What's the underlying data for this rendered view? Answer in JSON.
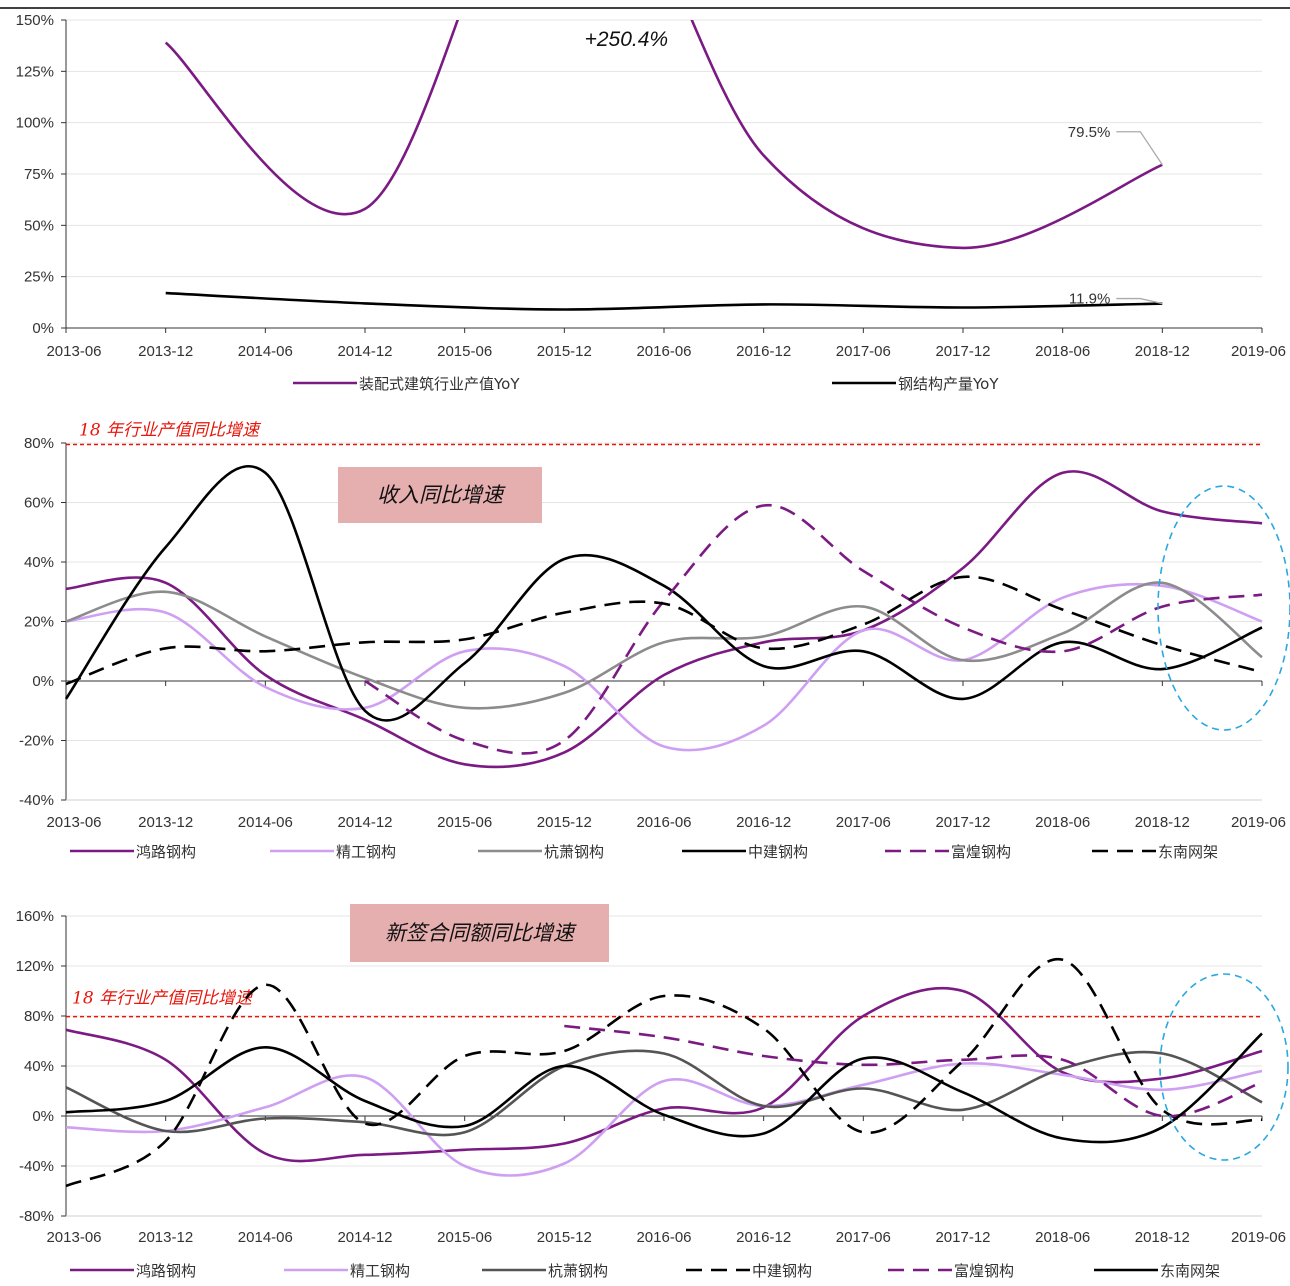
{
  "chart_data": [
    {
      "type": "line",
      "x_ticks": [
        "2013-06",
        "2013-12",
        "2014-06",
        "2014-12",
        "2015-06",
        "2015-12",
        "2016-06",
        "2016-12",
        "2017-06",
        "2017-12",
        "2018-06",
        "2018-12",
        "2019-06"
      ],
      "ylim": [
        0,
        150
      ],
      "y_ticks": [
        "0%",
        "25%",
        "50%",
        "75%",
        "100%",
        "125%",
        "150%"
      ],
      "series": [
        {
          "name": "装配式建筑行业产值YoY",
          "color": "#7b1a83",
          "dash": "solid",
          "points": [
            [
              "2013-12",
              139
            ],
            [
              "2014-12",
              58
            ],
            [
              "2015-12",
              250.4
            ],
            [
              "2016-12",
              84
            ],
            [
              "2017-12",
              39
            ],
            [
              "2018-12",
              79.5
            ]
          ]
        },
        {
          "name": "钢结构产量YoY",
          "color": "#000000",
          "dash": "solid",
          "points": [
            [
              "2013-12",
              17
            ],
            [
              "2014-12",
              12
            ],
            [
              "2015-12",
              9
            ],
            [
              "2016-12",
              11.5
            ],
            [
              "2017-12",
              10
            ],
            [
              "2018-12",
              11.9
            ]
          ]
        }
      ],
      "annotations": [
        {
          "text": "+250.4%",
          "x": "2015-12",
          "y": 250.4
        },
        {
          "text": "79.5%",
          "x": "2018-12",
          "y": 79.5
        },
        {
          "text": "11.9%",
          "x": "2018-12",
          "y": 11.9
        }
      ]
    },
    {
      "type": "line",
      "title": "收入同比增速",
      "x_ticks": [
        "2013-06",
        "2013-12",
        "2014-06",
        "2014-12",
        "2015-06",
        "2015-12",
        "2016-06",
        "2016-12",
        "2017-06",
        "2017-12",
        "2018-06",
        "2018-12",
        "2019-06"
      ],
      "ylim": [
        -40,
        80
      ],
      "y_ticks": [
        "-40%",
        "-20%",
        "0%",
        "20%",
        "40%",
        "60%",
        "80%"
      ],
      "reference_line": {
        "label": "18 年行业产值同比增速",
        "y": 79.5
      },
      "series": [
        {
          "name": "鸿路钢构",
          "color": "#7b1a83",
          "dash": "solid",
          "values": [
            31,
            33,
            2,
            -13,
            -28,
            -24,
            2,
            13,
            17,
            38,
            70,
            57,
            53
          ]
        },
        {
          "name": "精工钢构",
          "color": "#cfa0f2",
          "dash": "solid",
          "values": [
            20,
            23,
            -2,
            -9,
            10,
            5,
            -22,
            -15,
            17,
            7,
            28,
            32,
            20
          ]
        },
        {
          "name": "杭萧钢构",
          "color": "#8c8c8c",
          "dash": "solid",
          "values": [
            20,
            30,
            15,
            1,
            -9,
            -4,
            13,
            15,
            25,
            7,
            16,
            33,
            8
          ]
        },
        {
          "name": "中建钢构",
          "color": "#000000",
          "dash": "solid",
          "values": [
            -6,
            45,
            70,
            -10,
            6,
            41,
            32,
            5,
            10,
            -6,
            13,
            4,
            18
          ]
        },
        {
          "name": "富煌钢构",
          "color": "#7b1a83",
          "dash": "dashed",
          "values": [
            null,
            null,
            null,
            0,
            -20,
            -20,
            27,
            59,
            37,
            18,
            10,
            25,
            29
          ]
        },
        {
          "name": "东南网架",
          "color": "#000000",
          "dash": "dashed",
          "values": [
            -1,
            11,
            10,
            13,
            14,
            23,
            26,
            11,
            19,
            35,
            24,
            12,
            3
          ]
        }
      ]
    },
    {
      "type": "line",
      "title": "新签合同额同比增速",
      "x_ticks": [
        "2013-06",
        "2013-12",
        "2014-06",
        "2014-12",
        "2015-06",
        "2015-12",
        "2016-06",
        "2016-12",
        "2017-06",
        "2017-12",
        "2018-06",
        "2018-12",
        "2019-06"
      ],
      "ylim": [
        -80,
        160
      ],
      "y_ticks": [
        "-80%",
        "-40%",
        "0%",
        "40%",
        "80%",
        "120%",
        "160%"
      ],
      "reference_line": {
        "label": "18 年行业产值同比增速",
        "y": 79.5
      },
      "series": [
        {
          "name": "鸿路钢构",
          "color": "#7b1a83",
          "dash": "solid",
          "values": [
            69,
            45,
            -30,
            -31,
            -27,
            -22,
            6,
            7,
            80,
            100,
            35,
            30,
            52
          ]
        },
        {
          "name": "精工钢构",
          "color": "#cfa0f2",
          "dash": "solid",
          "values": [
            -9,
            -12,
            7,
            31,
            -40,
            -38,
            28,
            8,
            25,
            42,
            33,
            21,
            36
          ]
        },
        {
          "name": "杭萧钢构",
          "color": "#555555",
          "dash": "solid",
          "values": [
            23,
            -12,
            -2,
            -5,
            -13,
            40,
            50,
            8,
            22,
            5,
            38,
            50,
            11
          ]
        },
        {
          "name": "中建钢构",
          "color": "#000000",
          "dash": "dashed",
          "values": [
            -56,
            -20,
            105,
            -6,
            48,
            52,
            96,
            70,
            -13,
            44,
            125,
            5,
            -3
          ]
        },
        {
          "name": "富煌钢构",
          "color": "#7b1a83",
          "dash": "dashed",
          "values": [
            null,
            null,
            null,
            null,
            null,
            72,
            63,
            48,
            41,
            45,
            45,
            0,
            27
          ]
        },
        {
          "name": "东南网架",
          "color": "#000000",
          "dash": "solid",
          "values": [
            3,
            12,
            55,
            12,
            -8,
            40,
            1,
            -14,
            46,
            19,
            -18,
            -9,
            66
          ]
        }
      ]
    }
  ]
}
